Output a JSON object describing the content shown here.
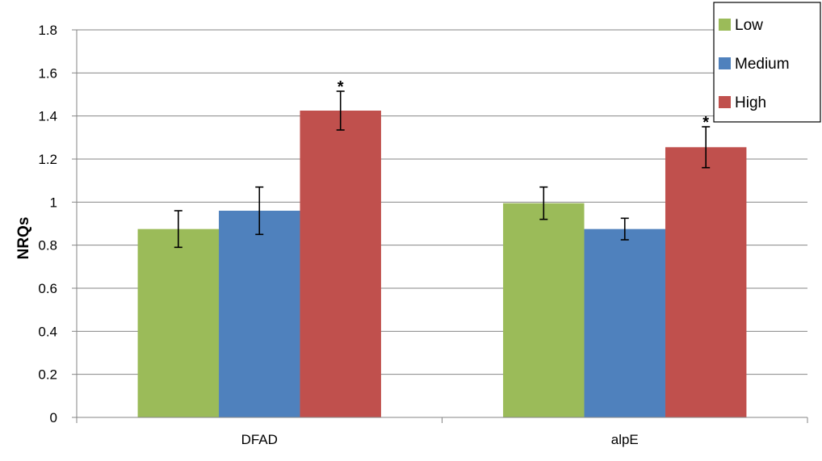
{
  "chart_data": {
    "type": "bar",
    "categories": [
      "DFAD",
      "alpE"
    ],
    "series": [
      {
        "name": "Low",
        "color": "#9BBB59",
        "values": [
          0.875,
          0.995
        ],
        "error": [
          0.085,
          0.075
        ]
      },
      {
        "name": "Medium",
        "color": "#4F81BD",
        "values": [
          0.96,
          0.875
        ],
        "error": [
          0.11,
          0.05
        ]
      },
      {
        "name": "High",
        "color": "#C0504D",
        "values": [
          1.425,
          1.255
        ],
        "error": [
          0.09,
          0.095
        ]
      }
    ],
    "annotations": [
      {
        "category": "DFAD",
        "series": "High",
        "text": "*"
      },
      {
        "category": "alpE",
        "series": "High",
        "text": "*"
      }
    ],
    "title": "",
    "xlabel": "",
    "ylabel": "NRQs",
    "ylim": [
      0,
      1.8
    ],
    "yticks": [
      "0",
      "0.2",
      "0.4",
      "0.6",
      "0.8",
      "1",
      "1.2",
      "1.4",
      "1.6",
      "1.8"
    ],
    "grid": true,
    "legend_position": "top-right"
  }
}
